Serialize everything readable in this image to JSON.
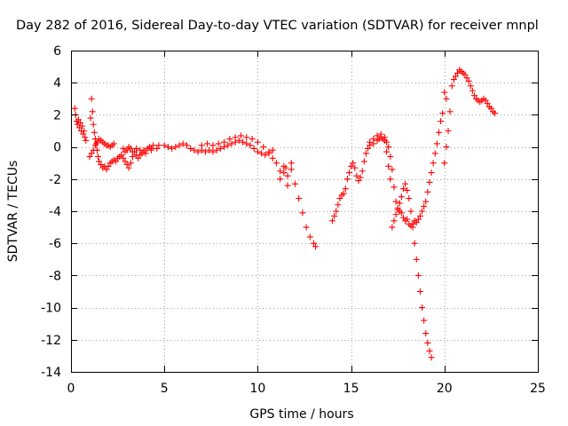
{
  "chart_data": {
    "type": "scatter",
    "title": "Day 282 of 2016, Sidereal Day-to-day VTEC variation (SDTVAR) for receiver mnpl",
    "xlabel": "GPS time / hours",
    "ylabel": "SDTVAR / TECUs",
    "xlim": [
      0,
      25
    ],
    "ylim": [
      -14,
      6
    ],
    "xticks": [
      0,
      5,
      10,
      15,
      20,
      25
    ],
    "yticks": [
      -14,
      -12,
      -10,
      -8,
      -6,
      -4,
      -2,
      0,
      2,
      4,
      6
    ],
    "grid": true,
    "marker": "plus",
    "color": "#ff0000",
    "series": [
      {
        "points": [
          [
            0.2,
            2.4
          ],
          [
            0.25,
            2.0
          ],
          [
            0.3,
            1.6
          ],
          [
            0.35,
            1.4
          ],
          [
            0.4,
            1.7
          ],
          [
            0.45,
            1.2
          ],
          [
            0.5,
            1.5
          ],
          [
            0.55,
            1.0
          ],
          [
            0.6,
            1.3
          ],
          [
            0.65,
            0.8
          ],
          [
            0.7,
            1.0
          ],
          [
            0.75,
            0.6
          ],
          [
            0.8,
            0.4
          ],
          [
            1.0,
            -0.6
          ],
          [
            1.05,
            1.8
          ],
          [
            1.1,
            3.0
          ],
          [
            1.15,
            2.2
          ],
          [
            1.2,
            1.4
          ],
          [
            1.25,
            0.9
          ],
          [
            1.3,
            0.5
          ],
          [
            1.35,
            0.2
          ],
          [
            1.4,
            -0.2
          ],
          [
            1.45,
            -0.6
          ],
          [
            1.5,
            -0.9
          ],
          [
            1.6,
            -1.1
          ],
          [
            1.7,
            -1.3
          ],
          [
            1.8,
            -1.2
          ],
          [
            1.9,
            -1.4
          ],
          [
            2.0,
            -1.2
          ],
          [
            2.1,
            -1.0
          ],
          [
            2.2,
            -0.9
          ],
          [
            2.3,
            -0.8
          ],
          [
            2.4,
            -0.9
          ],
          [
            2.5,
            -0.7
          ],
          [
            2.6,
            -0.6
          ],
          [
            2.7,
            -0.5
          ],
          [
            2.8,
            -0.7
          ],
          [
            2.9,
            -0.9
          ],
          [
            3.0,
            -1.1
          ],
          [
            3.1,
            -1.3
          ],
          [
            3.2,
            -1.0
          ],
          [
            3.3,
            -0.6
          ],
          [
            3.4,
            -0.3
          ],
          [
            3.5,
            -0.5
          ],
          [
            3.6,
            -0.7
          ],
          [
            3.7,
            -0.5
          ],
          [
            3.8,
            -0.4
          ],
          [
            3.9,
            -0.2
          ],
          [
            4.0,
            -0.4
          ],
          [
            4.1,
            -0.1
          ],
          [
            4.2,
            0.0
          ],
          [
            4.3,
            -0.2
          ],
          [
            1.1,
            -0.4
          ],
          [
            1.2,
            -0.2
          ],
          [
            1.3,
            0.1
          ],
          [
            1.4,
            0.3
          ],
          [
            1.5,
            0.5
          ],
          [
            1.6,
            0.4
          ],
          [
            1.7,
            0.3
          ],
          [
            1.8,
            0.2
          ],
          [
            1.9,
            0.1
          ],
          [
            2.0,
            0.1
          ],
          [
            2.1,
            0.0
          ],
          [
            2.2,
            0.1
          ],
          [
            2.3,
            0.2
          ],
          [
            2.8,
            -0.1
          ],
          [
            2.9,
            -0.3
          ],
          [
            3.0,
            -0.2
          ],
          [
            3.1,
            0.0
          ],
          [
            3.2,
            -0.1
          ],
          [
            3.3,
            -0.3
          ],
          [
            3.5,
            -0.1
          ],
          [
            3.7,
            -0.2
          ],
          [
            3.9,
            -0.3
          ],
          [
            4.3,
            -0.1
          ],
          [
            4.4,
            0.1
          ],
          [
            4.6,
            -0.1
          ],
          [
            4.7,
            0.1
          ],
          [
            5.0,
            0.1
          ],
          [
            5.2,
            0.0
          ],
          [
            5.4,
            -0.1
          ],
          [
            5.6,
            0.0
          ],
          [
            5.8,
            0.1
          ],
          [
            6.0,
            0.2
          ],
          [
            6.2,
            0.1
          ],
          [
            6.4,
            -0.1
          ],
          [
            6.6,
            -0.2
          ],
          [
            6.8,
            -0.3
          ],
          [
            7.0,
            -0.2
          ],
          [
            7.2,
            -0.3
          ],
          [
            7.4,
            -0.2
          ],
          [
            7.6,
            -0.3
          ],
          [
            7.8,
            -0.2
          ],
          [
            8.0,
            -0.1
          ],
          [
            8.2,
            0.0
          ],
          [
            8.4,
            0.1
          ],
          [
            8.6,
            0.2
          ],
          [
            8.8,
            0.3
          ],
          [
            9.0,
            0.4
          ],
          [
            9.2,
            0.3
          ],
          [
            9.4,
            0.2
          ],
          [
            9.6,
            0.1
          ],
          [
            9.8,
            -0.1
          ],
          [
            10.0,
            -0.3
          ],
          [
            10.2,
            -0.4
          ],
          [
            10.4,
            -0.5
          ],
          [
            10.6,
            -0.4
          ],
          [
            10.8,
            -0.7
          ],
          [
            11.0,
            -1.0
          ],
          [
            11.2,
            -1.5
          ],
          [
            11.4,
            -1.2
          ],
          [
            11.6,
            -1.8
          ],
          [
            11.8,
            -1.4
          ],
          [
            12.0,
            -2.3
          ],
          [
            12.2,
            -3.2
          ],
          [
            12.4,
            -4.1
          ],
          [
            12.6,
            -5.0
          ],
          [
            12.8,
            -5.6
          ],
          [
            13.0,
            -6.0
          ],
          [
            13.1,
            -6.2
          ],
          [
            7.0,
            0.1
          ],
          [
            7.3,
            0.2
          ],
          [
            7.6,
            0.1
          ],
          [
            7.9,
            0.2
          ],
          [
            8.2,
            0.3
          ],
          [
            8.5,
            0.5
          ],
          [
            8.8,
            0.6
          ],
          [
            9.1,
            0.7
          ],
          [
            9.4,
            0.6
          ],
          [
            9.7,
            0.5
          ],
          [
            10.0,
            0.3
          ],
          [
            10.3,
            0.0
          ],
          [
            10.6,
            -0.3
          ],
          [
            10.8,
            -0.2
          ],
          [
            11.2,
            -2.0
          ],
          [
            11.4,
            -1.6
          ],
          [
            11.6,
            -2.4
          ],
          [
            11.8,
            -1.0
          ],
          [
            11.5,
            -1.3
          ],
          [
            14.0,
            -4.6
          ],
          [
            14.1,
            -4.3
          ],
          [
            14.2,
            -4.0
          ],
          [
            14.3,
            -3.6
          ],
          [
            14.4,
            -3.2
          ],
          [
            14.5,
            -3.0
          ],
          [
            14.6,
            -2.9
          ],
          [
            14.7,
            -2.6
          ],
          [
            14.8,
            -2.0
          ],
          [
            14.9,
            -1.6
          ],
          [
            15.0,
            -1.2
          ],
          [
            15.1,
            -1.0
          ],
          [
            15.2,
            -1.3
          ],
          [
            15.3,
            -1.8
          ],
          [
            15.4,
            -2.1
          ],
          [
            15.5,
            -1.9
          ],
          [
            15.6,
            -1.5
          ],
          [
            15.7,
            -0.9
          ],
          [
            15.8,
            -0.4
          ],
          [
            15.9,
            -0.1
          ],
          [
            16.0,
            0.1
          ],
          [
            16.2,
            0.2
          ],
          [
            16.4,
            0.4
          ],
          [
            16.5,
            0.5
          ],
          [
            16.6,
            0.6
          ],
          [
            16.7,
            0.5
          ],
          [
            16.8,
            0.4
          ],
          [
            16.9,
            0.3
          ],
          [
            17.0,
            0.0
          ],
          [
            17.1,
            -0.6
          ],
          [
            17.2,
            -1.4
          ],
          [
            17.3,
            -2.5
          ],
          [
            17.4,
            -3.4
          ],
          [
            17.5,
            -3.8
          ],
          [
            17.6,
            -4.0
          ],
          [
            17.7,
            -4.1
          ],
          [
            17.8,
            -4.4
          ],
          [
            17.9,
            -4.6
          ],
          [
            18.0,
            -4.5
          ],
          [
            18.1,
            -4.8
          ],
          [
            18.2,
            -4.9
          ],
          [
            18.3,
            -4.8
          ],
          [
            18.4,
            -4.6
          ],
          [
            18.5,
            -4.7
          ],
          [
            18.6,
            -4.5
          ],
          [
            18.7,
            -4.3
          ],
          [
            18.8,
            -4.0
          ],
          [
            18.9,
            -3.7
          ],
          [
            19.0,
            -3.4
          ],
          [
            19.1,
            -2.8
          ],
          [
            19.2,
            -2.2
          ],
          [
            19.3,
            -1.6
          ],
          [
            19.4,
            -1.0
          ],
          [
            19.5,
            -0.4
          ],
          [
            19.6,
            0.2
          ],
          [
            19.7,
            0.9
          ],
          [
            19.8,
            1.6
          ],
          [
            19.9,
            2.1
          ],
          [
            16.0,
            0.3
          ],
          [
            16.2,
            0.5
          ],
          [
            16.4,
            0.7
          ],
          [
            16.6,
            0.8
          ],
          [
            16.8,
            0.6
          ],
          [
            16.9,
            -0.3
          ],
          [
            17.0,
            -1.2
          ],
          [
            17.1,
            -2.0
          ],
          [
            17.2,
            -5.0
          ],
          [
            17.3,
            -4.6
          ],
          [
            17.4,
            -4.2
          ],
          [
            17.5,
            -3.9
          ],
          [
            17.6,
            -3.5
          ],
          [
            17.7,
            -3.1
          ],
          [
            17.8,
            -2.6
          ],
          [
            17.9,
            -2.3
          ],
          [
            18.0,
            -2.7
          ],
          [
            18.1,
            -3.2
          ],
          [
            18.2,
            -4.0
          ],
          [
            18.3,
            -5.0
          ],
          [
            18.4,
            -6.0
          ],
          [
            18.5,
            -7.0
          ],
          [
            18.6,
            -8.0
          ],
          [
            18.7,
            -9.0
          ],
          [
            18.8,
            -10.0
          ],
          [
            18.9,
            -10.8
          ],
          [
            19.0,
            -11.6
          ],
          [
            19.1,
            -12.2
          ],
          [
            19.2,
            -12.7
          ],
          [
            19.3,
            -13.1
          ],
          [
            20.0,
            -1.0
          ],
          [
            20.1,
            0.0
          ],
          [
            20.2,
            1.0
          ],
          [
            20.3,
            2.2
          ],
          [
            20.0,
            3.4
          ],
          [
            20.1,
            3.0
          ],
          [
            20.4,
            3.8
          ],
          [
            20.5,
            4.2
          ],
          [
            20.6,
            4.4
          ],
          [
            20.7,
            4.6
          ],
          [
            20.8,
            4.8
          ],
          [
            20.9,
            4.7
          ],
          [
            21.0,
            4.6
          ],
          [
            21.1,
            4.5
          ],
          [
            21.2,
            4.3
          ],
          [
            21.3,
            4.1
          ],
          [
            21.4,
            3.8
          ],
          [
            21.5,
            3.5
          ],
          [
            21.6,
            3.2
          ],
          [
            21.7,
            3.0
          ],
          [
            21.8,
            2.9
          ],
          [
            21.9,
            2.8
          ],
          [
            22.0,
            2.9
          ],
          [
            22.1,
            3.0
          ],
          [
            22.2,
            2.9
          ],
          [
            22.3,
            2.7
          ],
          [
            22.4,
            2.5
          ],
          [
            22.5,
            2.4
          ],
          [
            22.6,
            2.2
          ],
          [
            22.7,
            2.1
          ]
        ]
      }
    ]
  }
}
